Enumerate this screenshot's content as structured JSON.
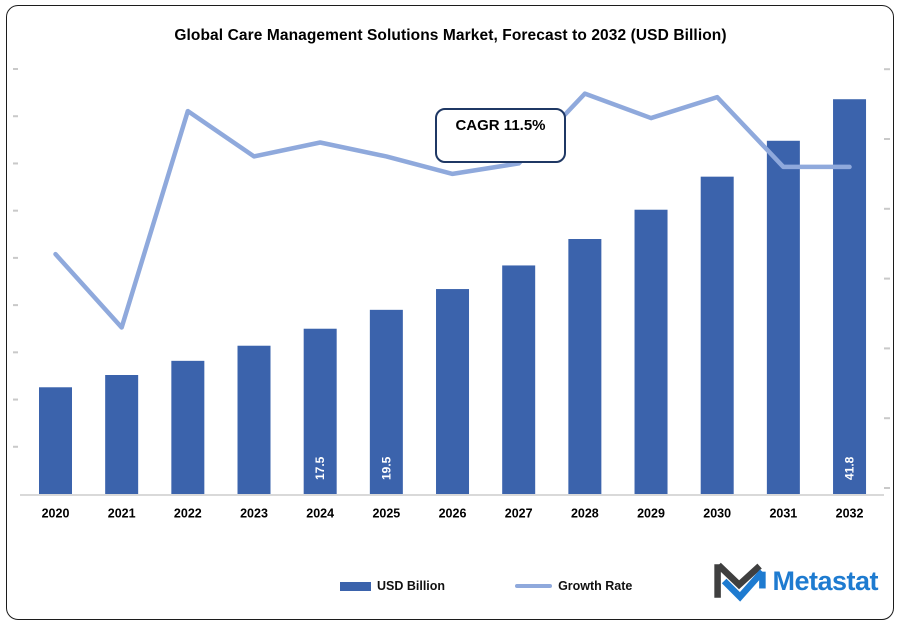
{
  "title": "Global Care Management Solutions Market, Forecast to 2032 (USD Billion)",
  "annotation": {
    "cagr": "CAGR 11.5%"
  },
  "legend": [
    {
      "label": "USD Billion",
      "marker": "bar-swatch"
    },
    {
      "label": "Growth Rate",
      "marker": "line-swatch"
    }
  ],
  "branding": {
    "logo_text": "Metastat",
    "logo_icon": "metastat-m-icon"
  },
  "colors": {
    "bar": "#3B63AC",
    "line": "#8FA9DC",
    "annotation_border": "#1F3864",
    "axis_line": "#D9D9D9",
    "tick_mark": "#C9C9C9",
    "bar_data_label": "#FFFFFF",
    "text": "#000000",
    "logo_blue": "#1E7BD0",
    "logo_dark": "#3F3F3F"
  },
  "chart_data": {
    "type": "bar",
    "subtype": "combo-bar-line",
    "title": "Global Care Management Solutions Market, Forecast to 2032 (USD Billion)",
    "categories": [
      "2020",
      "2021",
      "2022",
      "2023",
      "2024",
      "2025",
      "2026",
      "2027",
      "2028",
      "2029",
      "2030",
      "2031",
      "2032"
    ],
    "series": [
      {
        "name": "USD Billion",
        "type": "bar",
        "axis": "left",
        "values": [
          11.3,
          12.6,
          14.1,
          15.7,
          17.5,
          19.5,
          21.7,
          24.2,
          27.0,
          30.1,
          33.6,
          37.4,
          41.8
        ],
        "visible_data_labels": {
          "2024": "17.5",
          "2025": "19.5",
          "2032": "41.8"
        }
      },
      {
        "name": "Growth Rate",
        "type": "line",
        "axis": "right",
        "values_estimated_pct": [
          6.7,
          4.6,
          10.8,
          9.5,
          9.9,
          9.5,
          9.0,
          9.3,
          11.3,
          10.6,
          11.2,
          9.2,
          9.2
        ]
      }
    ],
    "left_axis": {
      "range": [
        0,
        45
      ],
      "tick_step": 5,
      "tick_labels_visible": false
    },
    "right_axis": {
      "range": [
        0,
        12
      ],
      "tick_step": 2,
      "tick_labels_visible": false
    },
    "grid": false,
    "legend_position": "bottom",
    "annotations": [
      "CAGR 11.5%"
    ]
  }
}
